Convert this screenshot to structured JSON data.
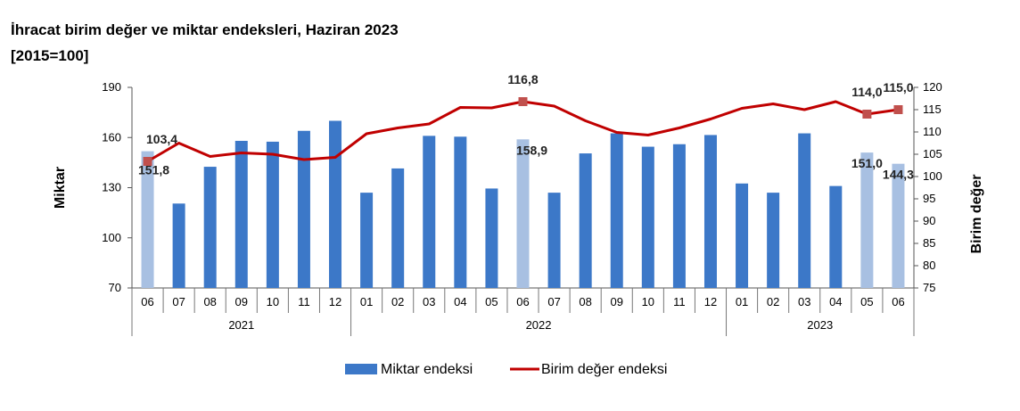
{
  "title": "İhracat birim değer ve miktar endeksleri, Haziran 2023",
  "subtitle": "[2015=100]",
  "chart_data": {
    "type": "bar",
    "title": "İhracat birim değer ve miktar endeksleri, Haziran 2023",
    "subtitle": "[2015=100]",
    "categories": [
      "06",
      "07",
      "08",
      "09",
      "10",
      "11",
      "12",
      "01",
      "02",
      "03",
      "04",
      "05",
      "06",
      "07",
      "08",
      "09",
      "10",
      "11",
      "12",
      "01",
      "02",
      "03",
      "04",
      "05",
      "06"
    ],
    "year_groups": [
      {
        "label": "2021",
        "start": 0,
        "end": 6
      },
      {
        "label": "2022",
        "start": 7,
        "end": 18
      },
      {
        "label": "2023",
        "start": 19,
        "end": 24
      }
    ],
    "highlighted_bars": [
      0,
      12,
      23,
      24
    ],
    "series": [
      {
        "name": "Miktar endeksi",
        "type": "bar",
        "axis": "left",
        "color": "#3c78c8",
        "highlight_color": "#a8c0e2",
        "values": [
          151.8,
          120.5,
          142.5,
          158.0,
          157.5,
          164.0,
          170.0,
          127.0,
          141.5,
          161.0,
          160.5,
          129.5,
          158.9,
          127.0,
          150.5,
          162.5,
          154.5,
          156.0,
          161.5,
          132.5,
          127.0,
          162.5,
          131.0,
          151.0,
          144.3
        ]
      },
      {
        "name": "Birim değer endeksi",
        "type": "line",
        "axis": "right",
        "color": "#c00000",
        "values": [
          103.4,
          107.5,
          104.5,
          105.3,
          105.0,
          103.8,
          104.3,
          109.6,
          110.9,
          111.8,
          115.5,
          115.4,
          116.8,
          115.8,
          112.5,
          109.9,
          109.3,
          110.9,
          112.9,
          115.3,
          116.3,
          115.0,
          116.8,
          114.0,
          115.0
        ]
      }
    ],
    "data_labels": {
      "bar": [
        {
          "index": 0,
          "text": "151,8"
        },
        {
          "index": 12,
          "text": "158,9"
        },
        {
          "index": 23,
          "text": "151,0"
        },
        {
          "index": 24,
          "text": "144,3"
        }
      ],
      "line": [
        {
          "index": 0,
          "text": "103,4"
        },
        {
          "index": 12,
          "text": "116,8"
        },
        {
          "index": 23,
          "text": "114,0"
        },
        {
          "index": 24,
          "text": "115,0"
        }
      ],
      "marked_line_points": [
        0,
        12,
        23,
        24
      ]
    },
    "ylabel": "Miktar",
    "y2label": "Birim değer",
    "ylim": [
      70,
      190
    ],
    "yticks": [
      70,
      100,
      130,
      160,
      190
    ],
    "y2lim": [
      75,
      120
    ],
    "y2ticks": [
      75,
      80,
      85,
      90,
      95,
      100,
      105,
      110,
      115,
      120
    ],
    "grid": false,
    "legend": {
      "position": "bottom",
      "items": [
        "Miktar endeksi",
        "Birim değer endeksi"
      ]
    }
  }
}
